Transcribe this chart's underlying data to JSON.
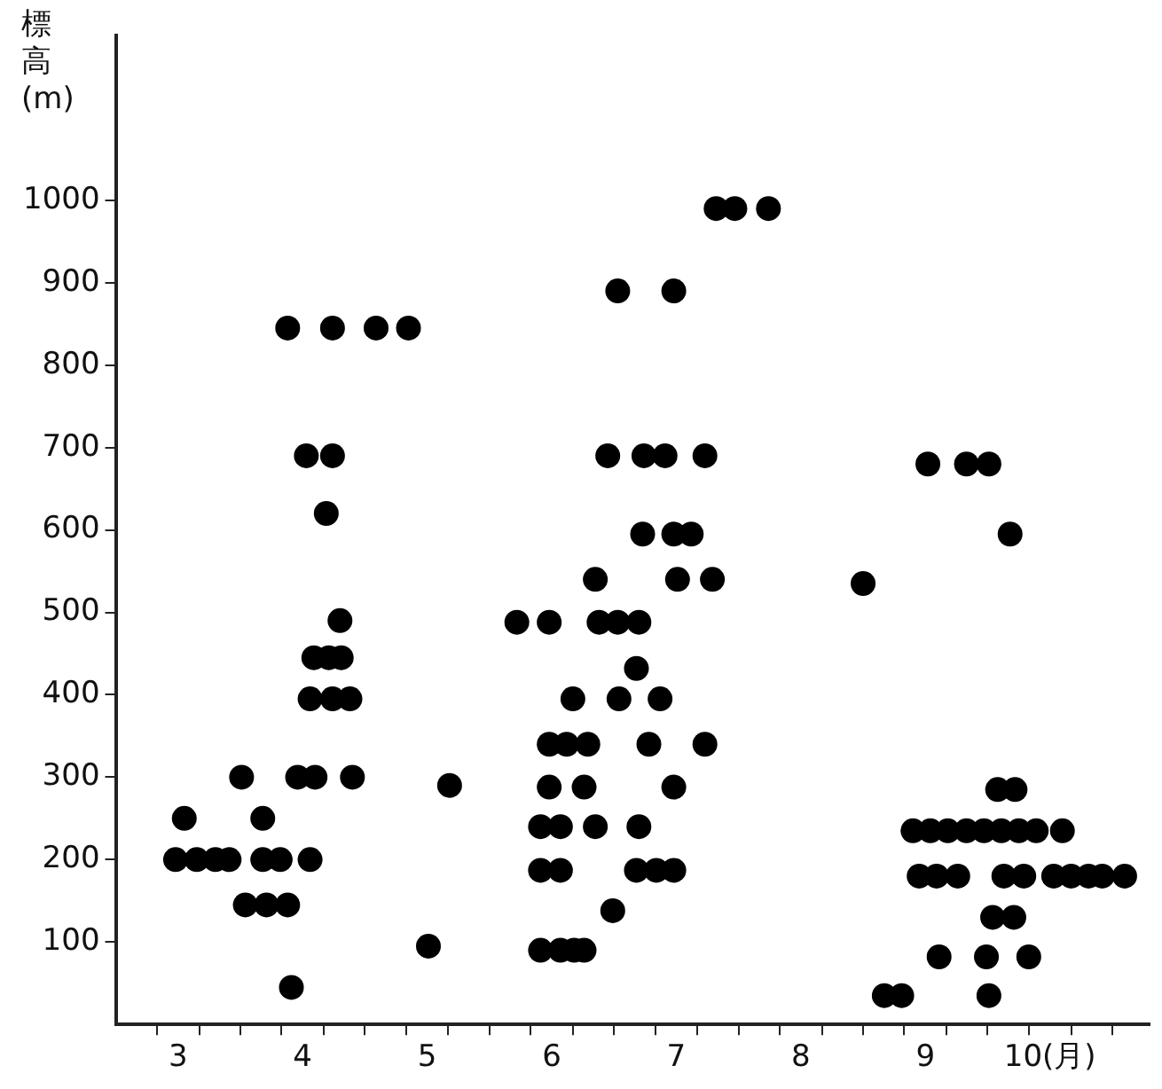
{
  "chart_data": {
    "type": "scatter",
    "ylabel": "標高(m)",
    "color": "#000000",
    "marker": "circle",
    "x": [
      3.55,
      3.48,
      3.65,
      3.8,
      3.91,
      4.01,
      4.18,
      4.18,
      4.32,
      4.56,
      4.04,
      4.21,
      4.38,
      4.41,
      4.46,
      4.6,
      4.9,
      4.56,
      4.74,
      4.88,
      4.59,
      4.71,
      4.81,
      4.8,
      4.38,
      4.74,
      5.09,
      5.35,
      4.53,
      4.74,
      4.69,
      5.51,
      5.68,
      6.22,
      6.48,
      6.67,
      6.48,
      6.62,
      6.79,
      7.28,
      7.73,
      6.48,
      6.76,
      7.48,
      6.41,
      6.57,
      6.85,
      7.2,
      6.41,
      6.57,
      7.18,
      7.34,
      7.48,
      6.99,
      6.41,
      6.57,
      6.68,
      6.76,
      7.82,
      7.97,
      8.24,
      7.03,
      7.48,
      6.95,
      7.24,
      7.41,
      7.73,
      9.52,
      9.83,
      10.01,
      7.23,
      7.48,
      7.62,
      10.18,
      6.85,
      7.51,
      7.79,
      9.0,
      6.88,
      7.03,
      7.2,
      7.18,
      7.04,
      7.37,
      9.17,
      9.31,
      10.01,
      9.61,
      9.99,
      10.33,
      10.04,
      10.21,
      9.45,
      9.59,
      9.76,
      10.13,
      10.29,
      10.53,
      10.67,
      10.81,
      10.92,
      11.1,
      9.4,
      9.54,
      9.68,
      9.83,
      9.97,
      10.11,
      10.25,
      10.39,
      10.6,
      10.08,
      10.22
    ],
    "values": [
      250,
      200,
      200,
      200,
      200,
      300,
      250,
      200,
      200,
      200,
      145,
      145,
      145,
      45,
      300,
      300,
      300,
      395,
      395,
      395,
      445,
      445,
      445,
      490,
      845,
      845,
      845,
      845,
      690,
      690,
      620,
      95,
      290,
      488,
      488,
      395,
      340,
      340,
      340,
      340,
      340,
      288,
      288,
      288,
      240,
      240,
      240,
      240,
      187,
      187,
      187,
      187,
      187,
      138,
      90,
      90,
      90,
      90,
      990,
      990,
      990,
      890,
      890,
      690,
      690,
      690,
      690,
      680,
      680,
      680,
      595,
      595,
      595,
      595,
      540,
      540,
      540,
      535,
      488,
      488,
      488,
      432,
      395,
      395,
      35,
      35,
      35,
      82,
      82,
      82,
      130,
      130,
      180,
      180,
      180,
      180,
      180,
      180,
      180,
      180,
      180,
      180,
      235,
      235,
      235,
      235,
      235,
      235,
      235,
      235,
      235,
      285,
      285
    ],
    "xlim": [
      3,
      11.3
    ],
    "ylim": [
      0,
      1200
    ],
    "xticks": [
      {
        "value": 3.33,
        "label": null
      },
      {
        "value": 3.5,
        "label": "3"
      },
      {
        "value": 3.67,
        "label": null
      },
      {
        "value": 4,
        "label": null
      },
      {
        "value": 4.33,
        "label": null
      },
      {
        "value": 4.5,
        "label": "4"
      },
      {
        "value": 4.67,
        "label": null
      },
      {
        "value": 5,
        "label": null
      },
      {
        "value": 5.33,
        "label": null
      },
      {
        "value": 5.5,
        "label": "5"
      },
      {
        "value": 5.67,
        "label": null
      },
      {
        "value": 6,
        "label": null
      },
      {
        "value": 6.33,
        "label": null
      },
      {
        "value": 6.5,
        "label": "6"
      },
      {
        "value": 6.67,
        "label": null
      },
      {
        "value": 7,
        "label": null
      },
      {
        "value": 7.33,
        "label": null
      },
      {
        "value": 7.5,
        "label": "7"
      },
      {
        "value": 7.67,
        "label": null
      },
      {
        "value": 8,
        "label": null
      },
      {
        "value": 8.33,
        "label": null
      },
      {
        "value": 8.5,
        "label": "8"
      },
      {
        "value": 8.67,
        "label": null
      },
      {
        "value": 9,
        "label": null
      },
      {
        "value": 9.33,
        "label": null
      },
      {
        "value": 9.5,
        "label": "9"
      },
      {
        "value": 9.67,
        "label": null
      },
      {
        "value": 10,
        "label": null
      },
      {
        "value": 10.33,
        "label": null
      },
      {
        "value": 10.5,
        "label": "10(月)"
      },
      {
        "value": 10.67,
        "label": null
      },
      {
        "value": 11,
        "label": null
      }
    ],
    "yticks": [
      100,
      200,
      300,
      400,
      500,
      600,
      700,
      800,
      900,
      1000
    ]
  }
}
